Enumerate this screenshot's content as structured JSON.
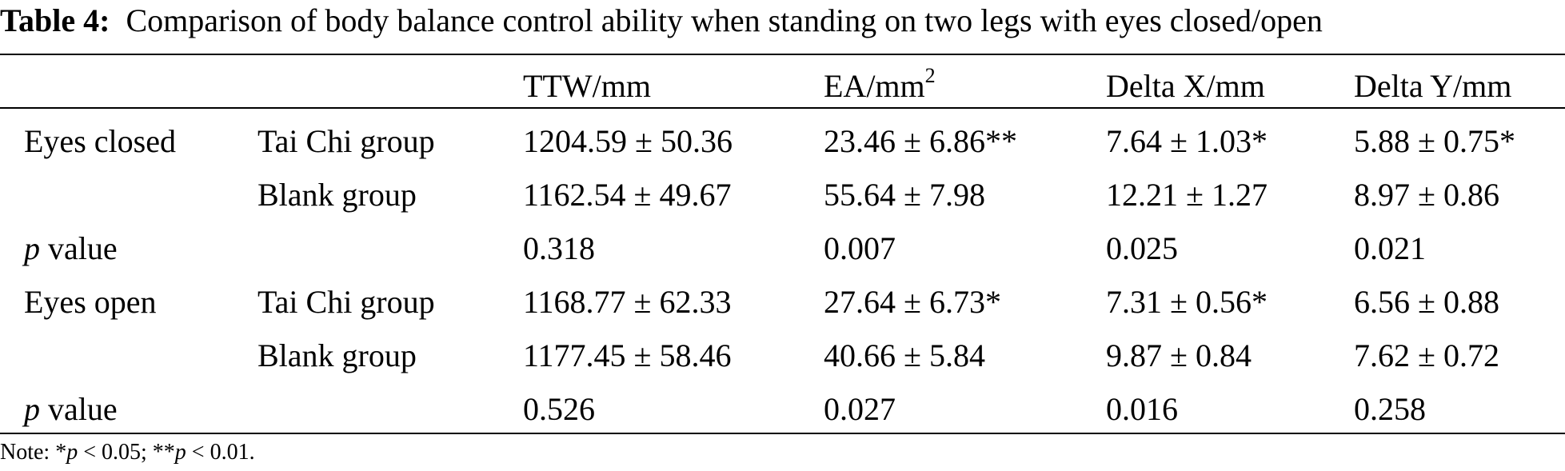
{
  "caption": {
    "label": "Table 4:",
    "text": "Comparison of body balance control ability when standing on two legs with eyes closed/open"
  },
  "table": {
    "headers": {
      "ttw": "TTW/mm",
      "ea_prefix": "EA/mm",
      "ea_sup": "2",
      "delta_x": "Delta X/mm",
      "delta_y": "Delta Y/mm"
    },
    "rows": [
      {
        "condition": "Eyes closed",
        "group": "Tai Chi group",
        "ttw": "1204.59 ± 50.36",
        "ea": "23.46 ± 6.86**",
        "delta_x": "7.64 ± 1.03*",
        "delta_y": "5.88 ± 0.75*"
      },
      {
        "condition": "",
        "group": "Blank group",
        "ttw": "1162.54 ± 49.67",
        "ea": "55.64 ± 7.98",
        "delta_x": "12.21 ± 1.27",
        "delta_y": "8.97 ± 0.86"
      },
      {
        "p_label": "p",
        "p_suffix": " value",
        "ttw": "0.318",
        "ea": "0.007",
        "delta_x": "0.025",
        "delta_y": "0.021"
      },
      {
        "condition": "Eyes open",
        "group": "Tai Chi group",
        "ttw": "1168.77 ± 62.33",
        "ea": "27.64 ± 6.73*",
        "delta_x": "7.31 ± 0.56*",
        "delta_y": "6.56 ± 0.88"
      },
      {
        "condition": "",
        "group": "Blank group",
        "ttw": "1177.45 ± 58.46",
        "ea": "40.66 ± 5.84",
        "delta_x": "9.87 ± 0.84",
        "delta_y": "7.62 ± 0.72"
      },
      {
        "p_label": "p",
        "p_suffix": " value",
        "ttw": "0.526",
        "ea": "0.027",
        "delta_x": "0.016",
        "delta_y": "0.258"
      }
    ]
  },
  "note": {
    "prefix": "Note: *",
    "p1": "p",
    "mid": " < 0.05; **",
    "p2": "p",
    "suffix": " < 0.01."
  }
}
